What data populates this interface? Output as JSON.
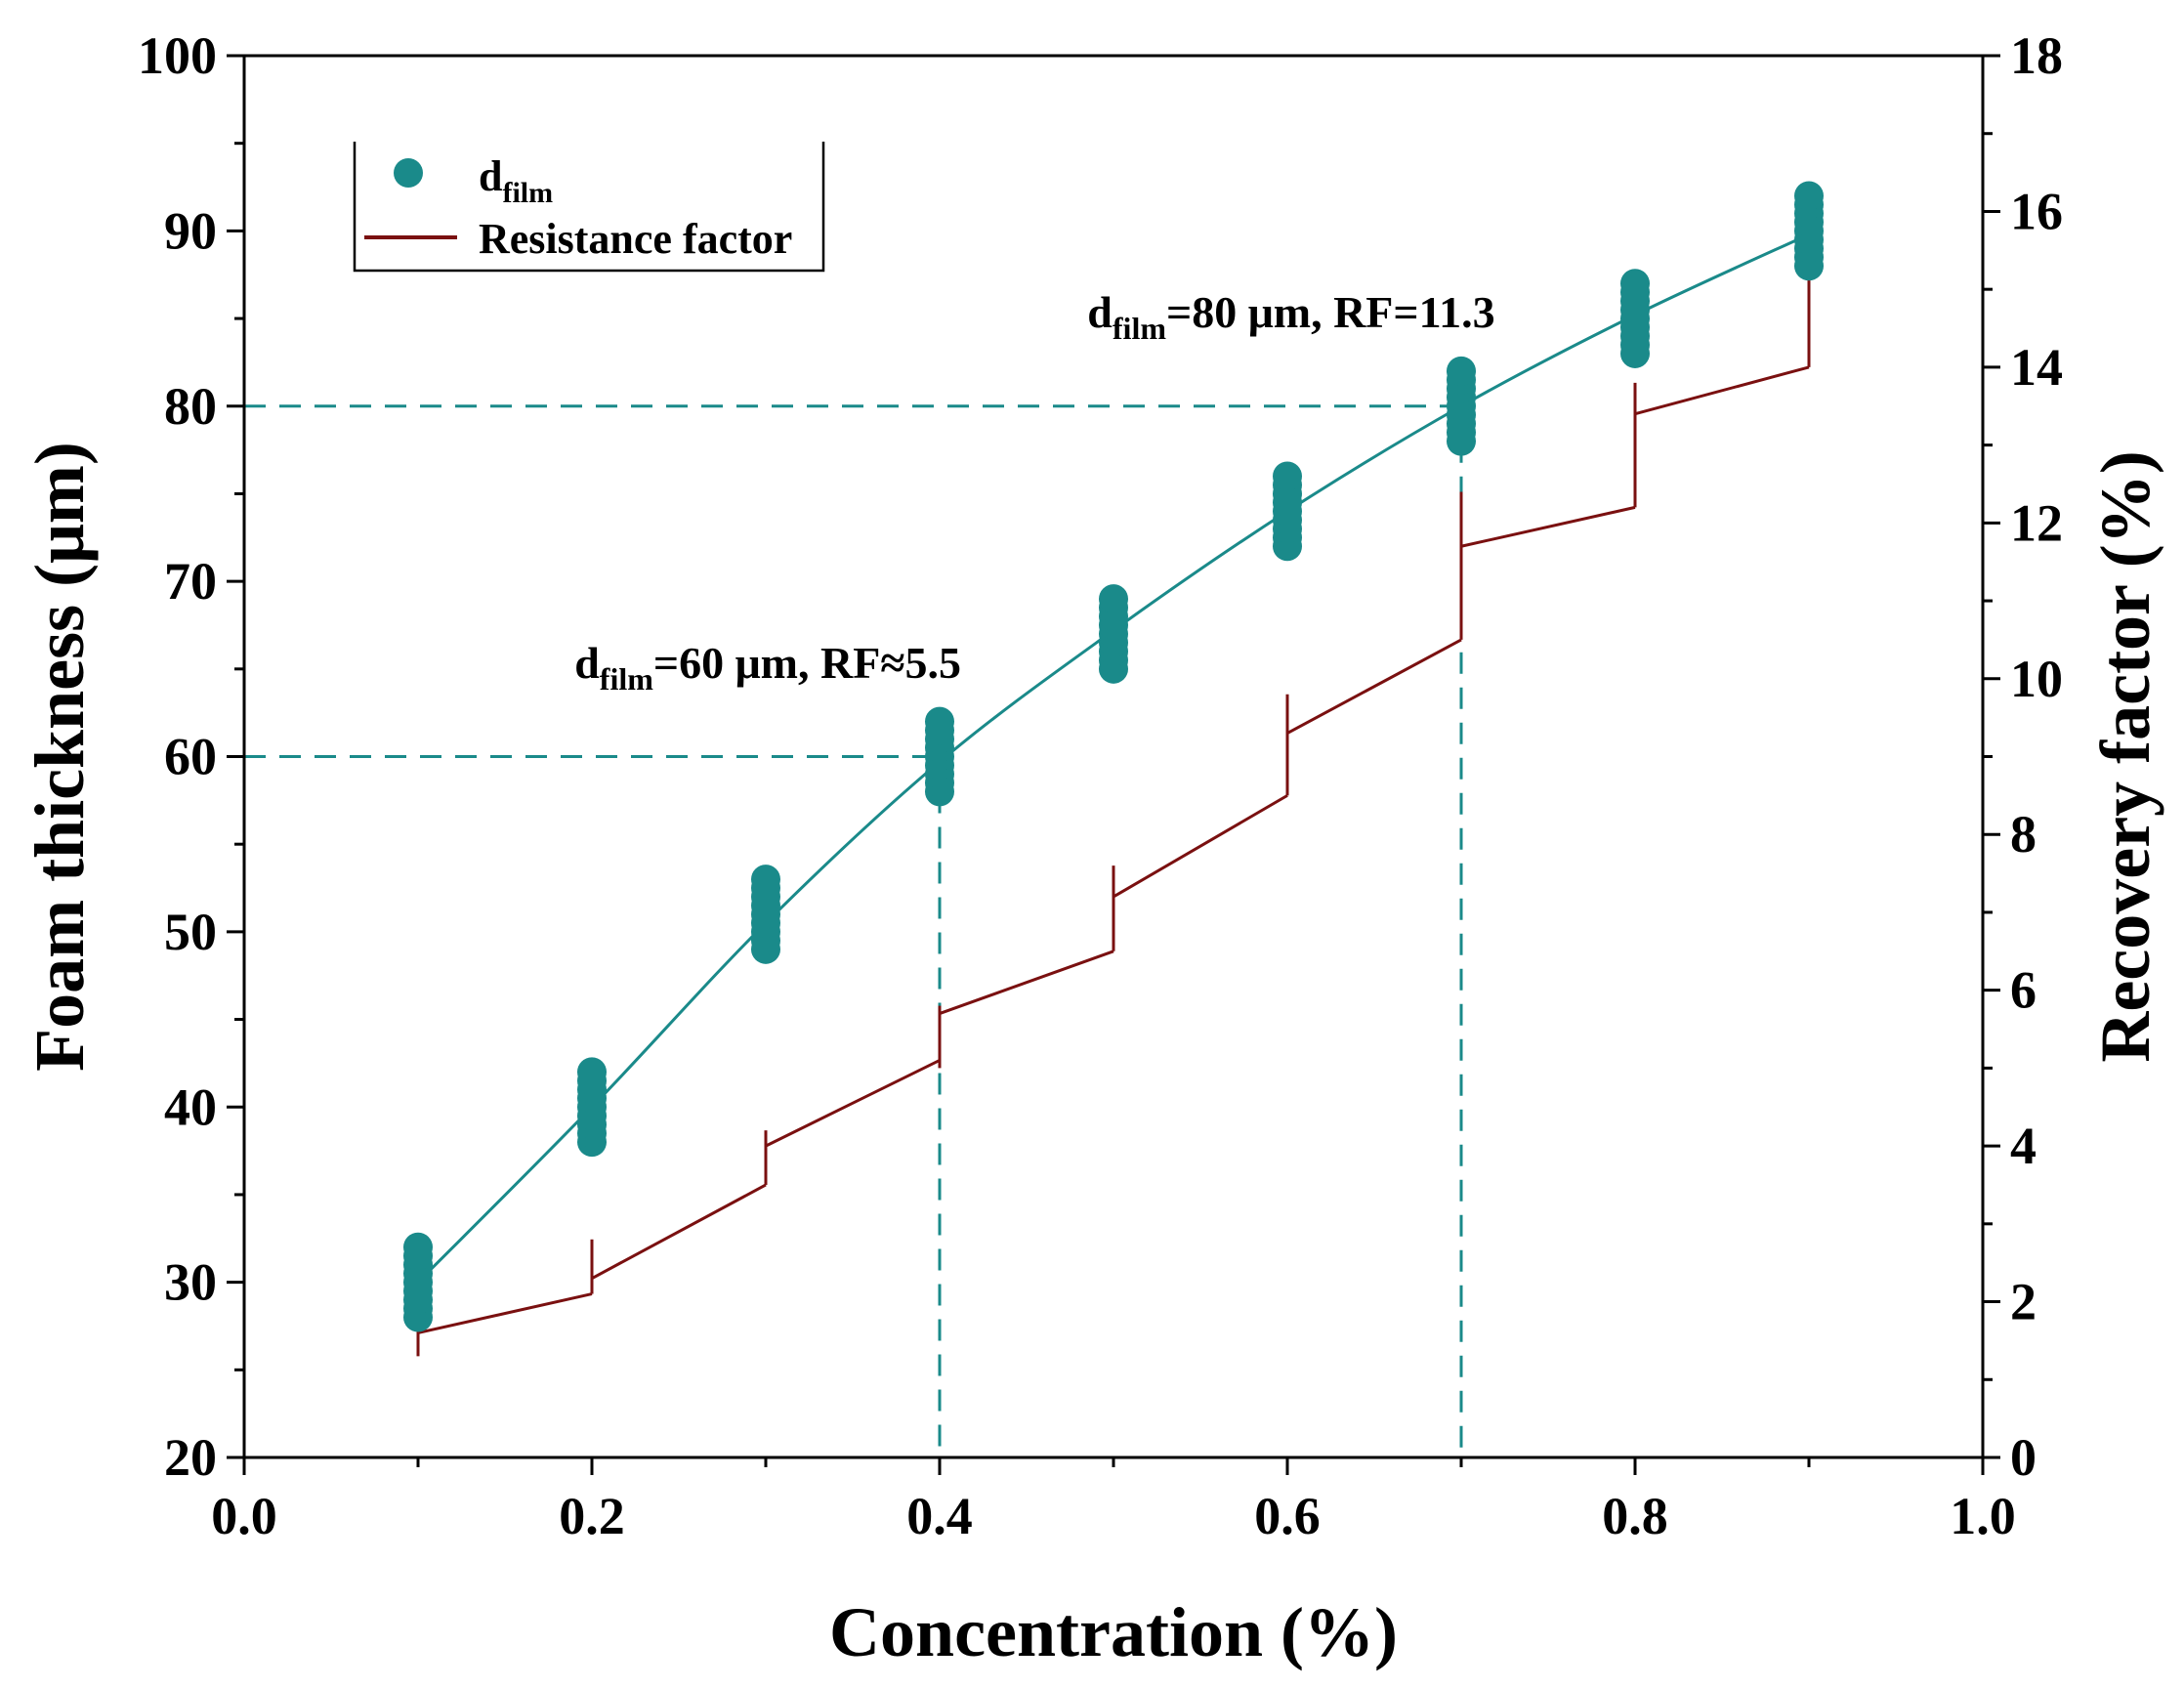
{
  "chart_data": {
    "type": "scatter",
    "title": "",
    "xlabel": "Concentration (%)",
    "ylabel": "Foam thickness (μm)",
    "y2label": "Recovery factor (%)",
    "xlim": [
      0.0,
      1.0
    ],
    "ylim": [
      20,
      100
    ],
    "y2lim": [
      0,
      18
    ],
    "x_ticks": [
      "0.0",
      "0.2",
      "0.4",
      "0.6",
      "0.8",
      "1.0"
    ],
    "y_ticks": [
      "20",
      "30",
      "40",
      "50",
      "60",
      "70",
      "80",
      "90",
      "100"
    ],
    "y2_ticks": [
      "0",
      "2",
      "4",
      "6",
      "8",
      "10",
      "12",
      "14",
      "16",
      "18"
    ],
    "grid": false,
    "legend": {
      "position": "top-left",
      "entries": [
        {
          "main": "d",
          "sub": "film",
          "color": "#1a8a8a",
          "marker": "circle"
        },
        {
          "main": "Resistance factor",
          "sub": "",
          "color": "#7a1010",
          "marker": "line"
        }
      ]
    },
    "series": [
      {
        "name": "d_film",
        "axis": "left",
        "color": "#1a8a8a",
        "x": [
          0.1,
          0.2,
          0.3,
          0.4,
          0.5,
          0.6,
          0.7,
          0.8,
          0.9
        ],
        "y_min": [
          28,
          38,
          49,
          58,
          65,
          72,
          78,
          83,
          88
        ],
        "y_max": [
          32,
          42,
          53,
          62,
          69,
          76,
          82,
          87,
          92
        ],
        "fit": [
          [
            0.1,
            30
          ],
          [
            0.2,
            40
          ],
          [
            0.3,
            50.5
          ],
          [
            0.4,
            59.7
          ],
          [
            0.5,
            67.2
          ],
          [
            0.6,
            74
          ],
          [
            0.7,
            80
          ],
          [
            0.8,
            85.2
          ],
          [
            0.9,
            89.8
          ]
        ]
      },
      {
        "name": "Resistance factor",
        "axis": "right",
        "color": "#7a1010",
        "steps": [
          {
            "x": 0.1,
            "y_start": 1.6,
            "y_end": 2.1,
            "spike_low": 1.3,
            "spike_high": 2.0
          },
          {
            "x": 0.2,
            "y_start": 2.3,
            "y_end": 3.5,
            "spike_low": 2.1,
            "spike_high": 2.8
          },
          {
            "x": 0.3,
            "y_start": 4.0,
            "y_end": 5.1,
            "spike_low": 3.5,
            "spike_high": 4.2
          },
          {
            "x": 0.4,
            "y_start": 5.7,
            "y_end": 6.5,
            "spike_low": 5.0,
            "spike_high": 5.8
          },
          {
            "x": 0.5,
            "y_start": 7.2,
            "y_end": 8.5,
            "spike_low": 6.5,
            "spike_high": 7.6
          },
          {
            "x": 0.6,
            "y_start": 9.3,
            "y_end": 10.5,
            "spike_low": 8.5,
            "spike_high": 9.8
          },
          {
            "x": 0.7,
            "y_start": 11.7,
            "y_end": 12.2,
            "spike_low": 10.5,
            "spike_high": 12.4
          },
          {
            "x": 0.8,
            "y_start": 13.4,
            "y_end": 14.0,
            "spike_low": 12.2,
            "spike_high": 13.8
          },
          {
            "x": 0.9,
            "y_start": null,
            "y_end": null,
            "spike_low": 14.0,
            "spike_high": 16.0
          }
        ]
      }
    ],
    "reference_lines": [
      {
        "x": 0.4,
        "y": 60,
        "color": "#1a8a8a",
        "style": "dashed"
      },
      {
        "x": 0.7,
        "y": 80,
        "color": "#1a8a8a",
        "style": "dashed"
      }
    ],
    "annotations": [
      {
        "main": "d",
        "sub": "film",
        "rest": "=60 μm, RF≈5.5",
        "anchor_x": 0.19,
        "anchor_y": 64.5
      },
      {
        "main": "d",
        "sub": "film",
        "rest": "=80 μm, RF=11.3",
        "anchor_x": 0.485,
        "anchor_y": 84.5
      }
    ]
  }
}
